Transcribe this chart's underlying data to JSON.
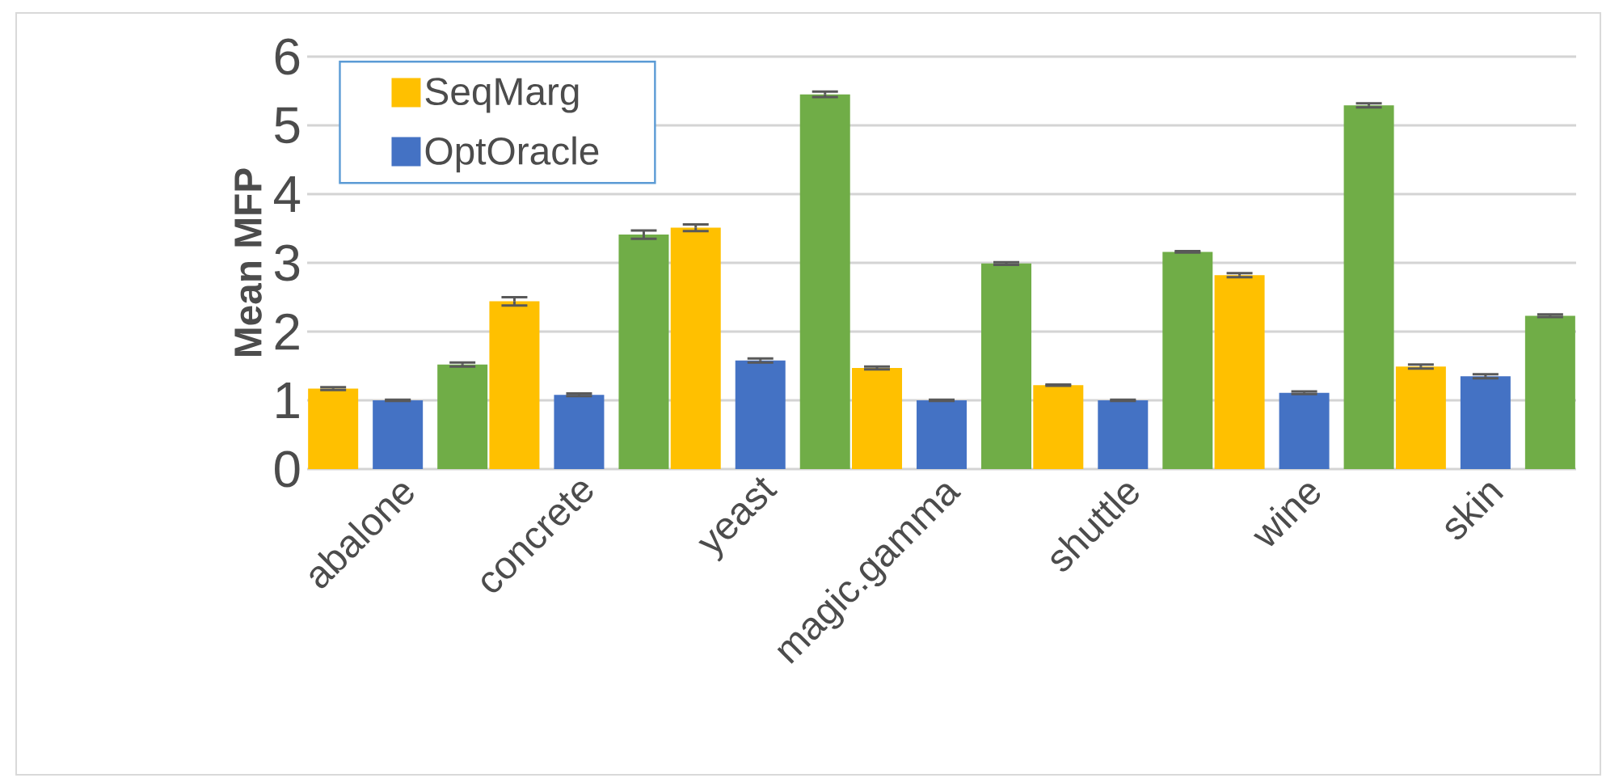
{
  "chart_data": {
    "type": "bar",
    "ylabel": "Mean MFP",
    "categories": [
      "abalone",
      "concrete",
      "yeast",
      "magic.gamma",
      "shuttle",
      "wine",
      "skin"
    ],
    "series": [
      {
        "name": "SeqMarg",
        "color": "#ffc000",
        "values": [
          1.17,
          2.44,
          3.51,
          1.47,
          1.22,
          2.82,
          1.49
        ],
        "errors": [
          0.02,
          0.06,
          0.05,
          0.02,
          0.01,
          0.03,
          0.03
        ]
      },
      {
        "name": "OptOracle",
        "color": "#4472c4",
        "values": [
          1.0,
          1.08,
          1.58,
          1.0,
          1.0,
          1.11,
          1.35
        ],
        "errors": [
          0.01,
          0.02,
          0.03,
          0.01,
          0.01,
          0.02,
          0.03
        ]
      },
      {
        "color": "#70ad47",
        "values": [
          1.52,
          3.41,
          5.45,
          2.99,
          3.16,
          5.29,
          2.23
        ],
        "errors": [
          0.03,
          0.06,
          0.04,
          0.02,
          0.01,
          0.03,
          0.02
        ]
      }
    ],
    "ylim": [
      0,
      6
    ],
    "yticks": [
      0,
      1,
      2,
      3,
      4,
      5,
      6
    ],
    "grid": "y",
    "legend": "top left"
  }
}
